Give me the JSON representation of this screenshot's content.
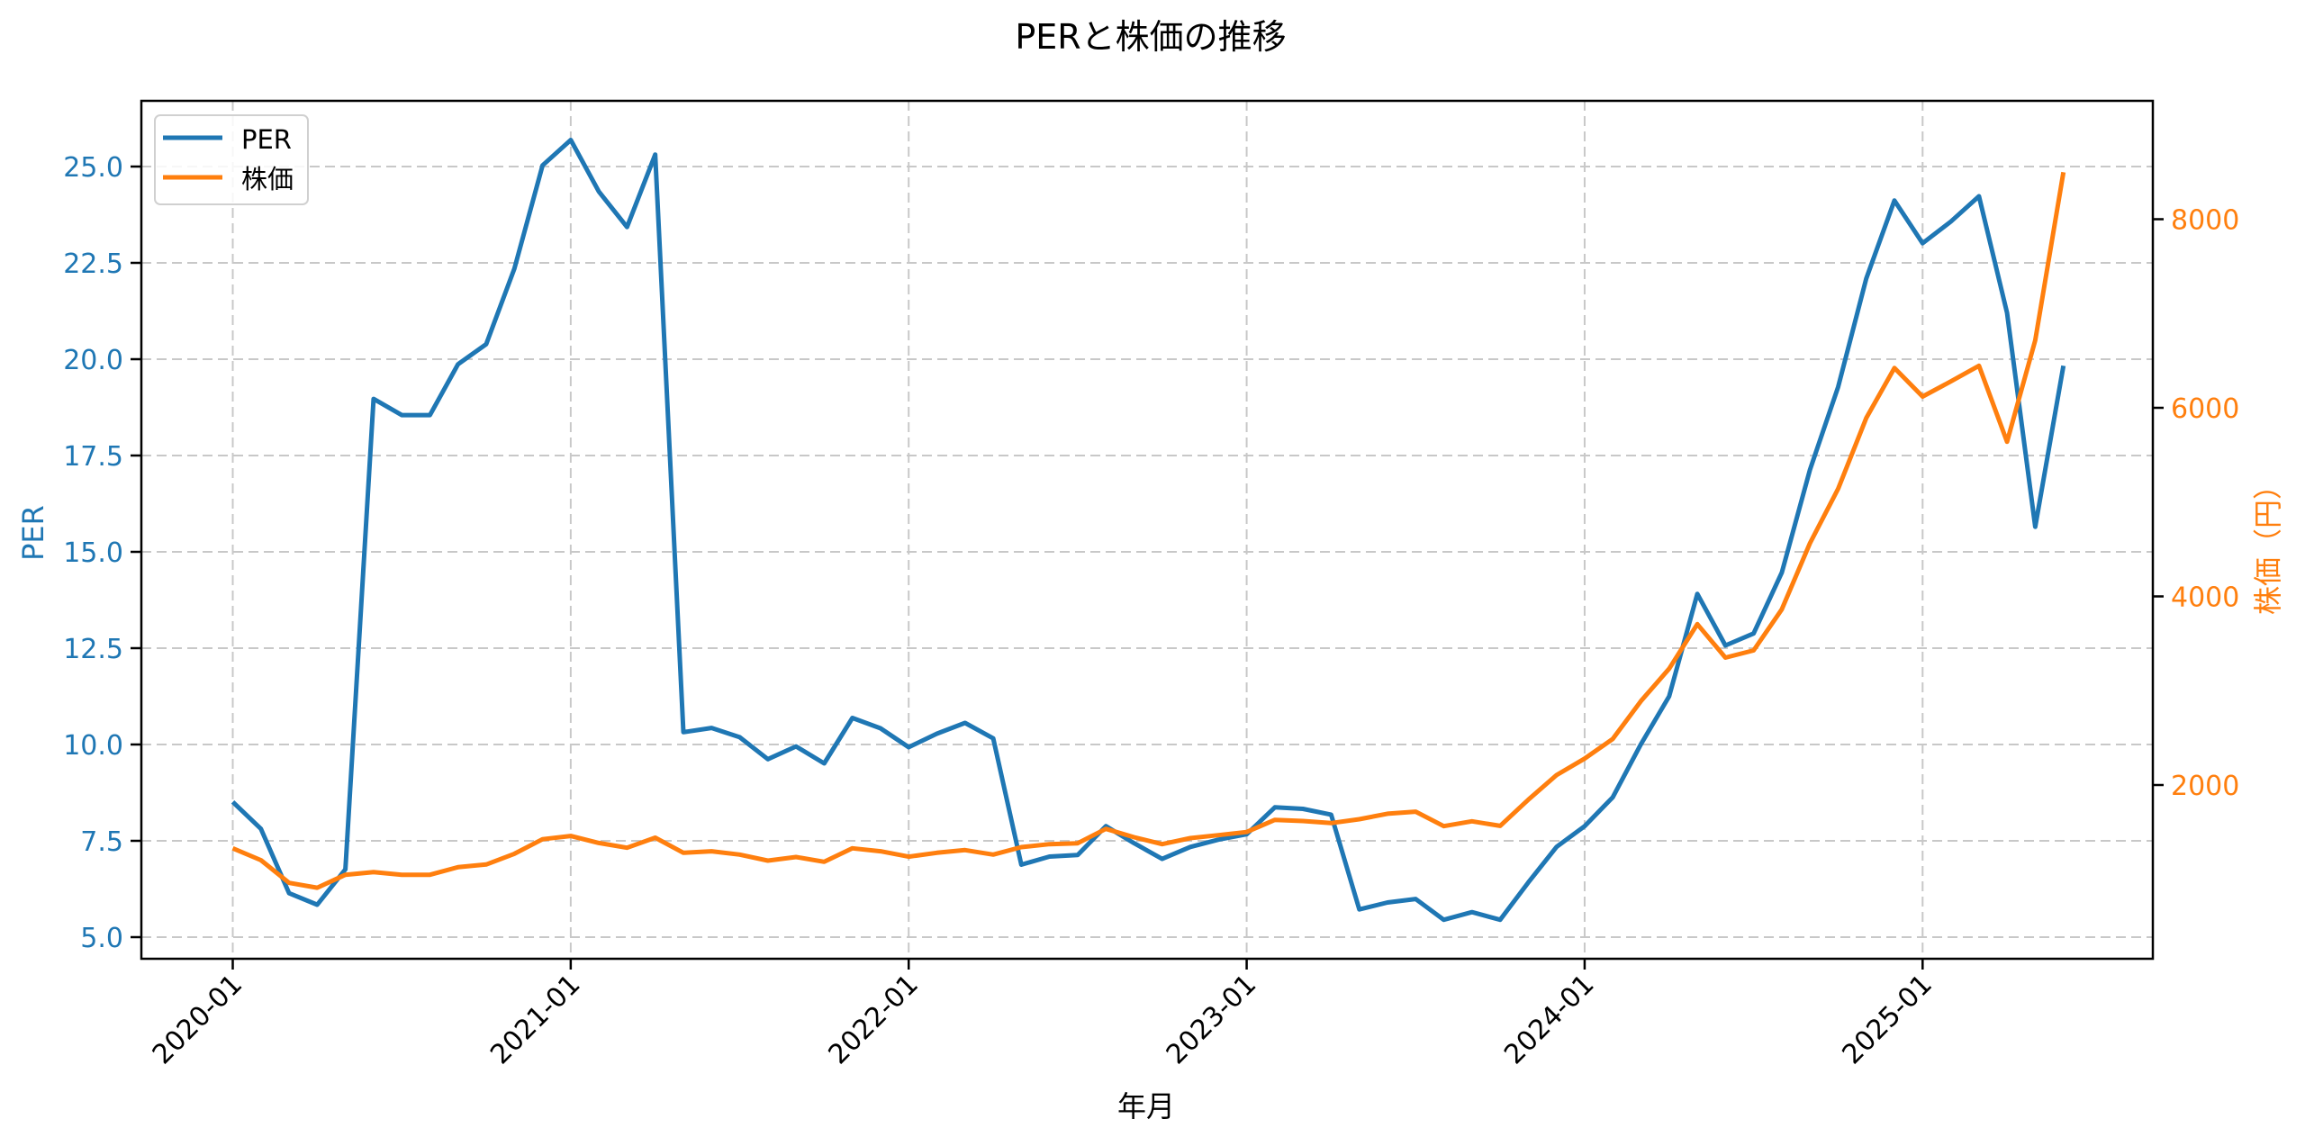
{
  "chart_data": {
    "type": "line",
    "title": "PERと株価の推移",
    "xlabel": "年月",
    "ylabel_left": "PER",
    "ylabel_right": "株価（円）",
    "grid": true,
    "legend_position": "upper left",
    "x_tick_labels": [
      "2020-01",
      "2021-01",
      "2022-01",
      "2023-01",
      "2024-01",
      "2025-01"
    ],
    "y_left_ticks": [
      "5.0",
      "7.5",
      "10.0",
      "12.5",
      "15.0",
      "17.5",
      "20.0",
      "22.5",
      "25.0"
    ],
    "y_right_ticks": [
      "2000",
      "4000",
      "6000",
      "8000"
    ],
    "y_left_range": [
      4.4,
      26.8
    ],
    "y_right_range": [
      330,
      9220
    ],
    "x": [
      "2020-01",
      "2020-02",
      "2020-03",
      "2020-04",
      "2020-05",
      "2020-06",
      "2020-07",
      "2020-08",
      "2020-09",
      "2020-10",
      "2020-11",
      "2020-12",
      "2021-01",
      "2021-02",
      "2021-03",
      "2021-04",
      "2021-05",
      "2021-06",
      "2021-07",
      "2021-08",
      "2021-09",
      "2021-10",
      "2021-11",
      "2021-12",
      "2022-01",
      "2022-02",
      "2022-03",
      "2022-04",
      "2022-05",
      "2022-06",
      "2022-07",
      "2022-08",
      "2022-09",
      "2022-10",
      "2022-11",
      "2022-12",
      "2023-01",
      "2023-02",
      "2023-03",
      "2023-04",
      "2023-05",
      "2023-06",
      "2023-07",
      "2023-08",
      "2023-09",
      "2023-10",
      "2023-11",
      "2023-12",
      "2024-01",
      "2024-02",
      "2024-03",
      "2024-04",
      "2024-05",
      "2024-06",
      "2024-07",
      "2024-08",
      "2024-09",
      "2024-10",
      "2024-11",
      "2024-12",
      "2025-01",
      "2025-02",
      "2025-03",
      "2025-04",
      "2025-05",
      "2025-06"
    ],
    "series": [
      {
        "name": "PER",
        "axis": "left",
        "color": "#1f77b4",
        "values": [
          8.51,
          7.81,
          6.14,
          5.84,
          6.76,
          18.97,
          18.55,
          18.55,
          19.87,
          20.39,
          22.35,
          25.03,
          25.69,
          24.35,
          23.43,
          25.31,
          10.32,
          10.43,
          10.19,
          9.62,
          9.95,
          9.51,
          10.69,
          10.42,
          9.93,
          10.28,
          10.56,
          10.16,
          6.88,
          7.09,
          7.13,
          7.88,
          7.44,
          7.03,
          7.34,
          7.53,
          7.67,
          8.37,
          8.33,
          8.18,
          5.72,
          5.9,
          5.99,
          5.45,
          5.65,
          5.45,
          6.42,
          7.34,
          7.88,
          8.63,
          10.01,
          11.25,
          13.91,
          12.57,
          12.88,
          14.46,
          17.13,
          19.28,
          22.09,
          24.12,
          23.01,
          23.57,
          24.23,
          21.2,
          15.65,
          19.83
        ]
      },
      {
        "name": "株価",
        "axis": "right",
        "color": "#ff7f0e",
        "values": [
          1329,
          1203,
          962,
          911,
          1048,
          1077,
          1048,
          1048,
          1128,
          1157,
          1271,
          1425,
          1460,
          1385,
          1335,
          1442,
          1281,
          1297,
          1262,
          1198,
          1236,
          1186,
          1329,
          1297,
          1240,
          1281,
          1310,
          1262,
          1341,
          1373,
          1382,
          1535,
          1446,
          1373,
          1437,
          1468,
          1502,
          1631,
          1618,
          1596,
          1637,
          1695,
          1717,
          1564,
          1615,
          1567,
          1844,
          2105,
          2280,
          2489,
          2891,
          3233,
          3706,
          3351,
          3427,
          3863,
          4564,
          5142,
          5891,
          6422,
          6119,
          6280,
          6446,
          5640,
          6716,
          8498
        ]
      }
    ]
  },
  "legend": {
    "items": [
      {
        "label": "PER",
        "color": "#1f77b4"
      },
      {
        "label": "株価",
        "color": "#ff7f0e"
      }
    ]
  },
  "colors": {
    "per": "#1f77b4",
    "price": "#ff7f0e",
    "grid": "#c8c8c8",
    "axis": "#000000"
  }
}
